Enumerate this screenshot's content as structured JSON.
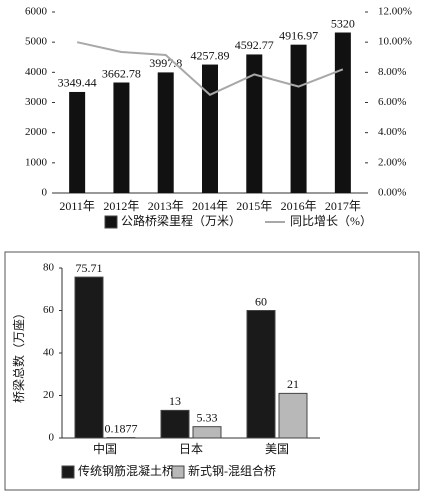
{
  "chart_data": [
    {
      "type": "bar",
      "categories": [
        "2011年",
        "2012年",
        "2013年",
        "2014年",
        "2015年",
        "2016年",
        "2017年"
      ],
      "series": [
        {
          "name": "公路桥梁里程（万米）",
          "color": "#111111",
          "values": [
            3349.44,
            3662.78,
            3997.8,
            4257.89,
            4592.77,
            4916.97,
            5320
          ]
        },
        {
          "name": "同比增长（%）",
          "color": "#a8a8a8",
          "type": "line",
          "axis": "y2",
          "values": [
            10.0,
            9.35,
            9.15,
            6.51,
            7.86,
            7.06,
            8.2
          ]
        }
      ],
      "ylim": [
        0,
        6000
      ],
      "yticks": [
        0,
        1000,
        2000,
        3000,
        4000,
        5000,
        6000
      ],
      "y2lim": [
        0,
        12
      ],
      "y2ticks": [
        {
          "value": 0,
          "label": "0.00%"
        },
        {
          "value": 2,
          "label": "2.00%"
        },
        {
          "value": 4,
          "label": "4.00%"
        },
        {
          "value": 6,
          "label": "6.00%"
        },
        {
          "value": 8,
          "label": "8.00%"
        },
        {
          "value": 10,
          "label": "10.00%"
        },
        {
          "value": 12,
          "label": "12.00%"
        }
      ],
      "data_labels": true,
      "grid": false
    },
    {
      "type": "bar",
      "y_label": "桥梁总数（万座）",
      "categories": [
        "中国",
        "日本",
        "美国"
      ],
      "series": [
        {
          "name": "传统钢筋混凝土桥",
          "color": "#1a1a1a",
          "values": [
            75.71,
            13,
            60
          ]
        },
        {
          "name": "新式钢-混组合桥",
          "color": "#b8b8b8",
          "values": [
            0.1877,
            5.33,
            21
          ]
        }
      ],
      "ylim": [
        0,
        80
      ],
      "yticks": [
        0,
        20,
        40,
        60,
        80
      ],
      "data_labels": true,
      "grid": false
    }
  ]
}
